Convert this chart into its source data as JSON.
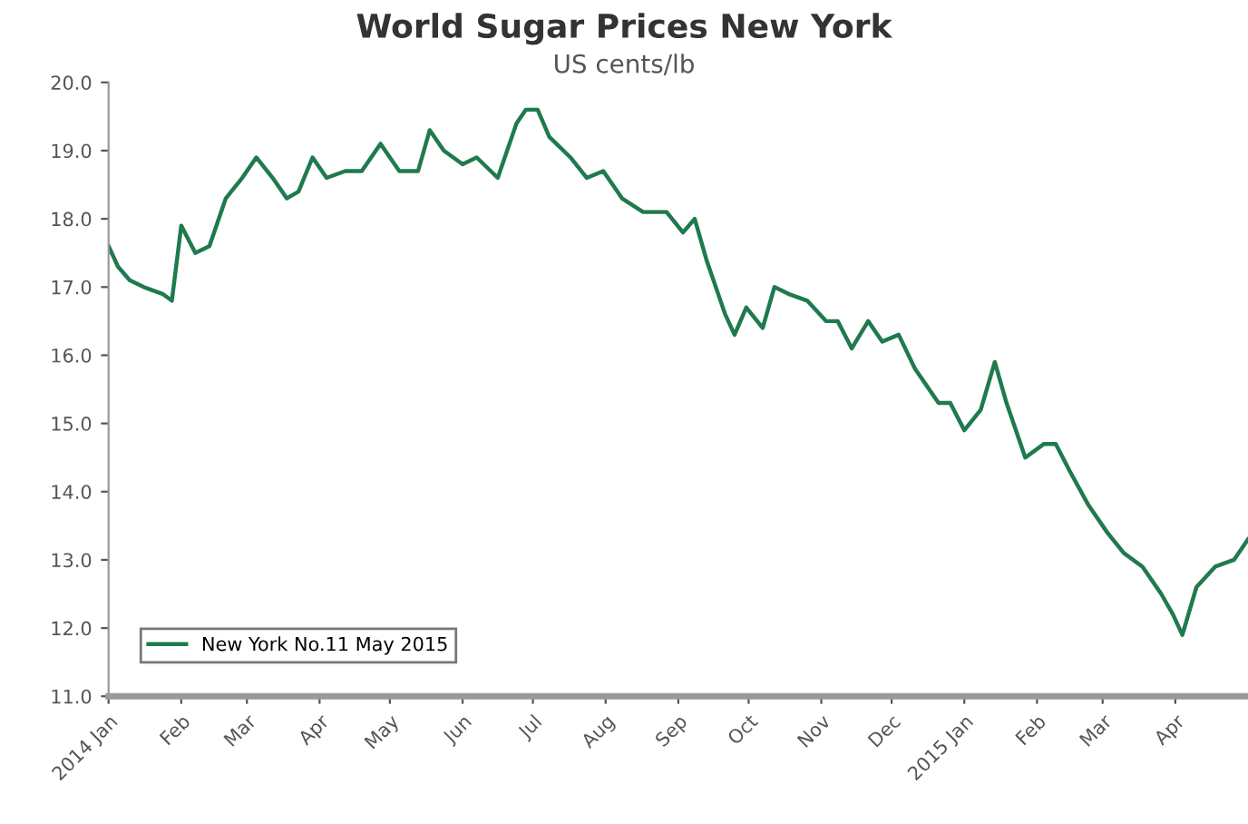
{
  "chart_data": {
    "type": "line",
    "title": "World Sugar Prices New York",
    "subtitle": "US cents/lb",
    "x": [
      "2014-01-01",
      "2014-01-05",
      "2014-01-10",
      "2014-01-16",
      "2014-01-24",
      "2014-01-28",
      "2014-02-01",
      "2014-02-07",
      "2014-02-13",
      "2014-02-20",
      "2014-02-27",
      "2014-03-05",
      "2014-03-12",
      "2014-03-18",
      "2014-03-23",
      "2014-03-29",
      "2014-04-04",
      "2014-04-12",
      "2014-04-19",
      "2014-04-27",
      "2014-05-05",
      "2014-05-13",
      "2014-05-18",
      "2014-05-24",
      "2014-06-01",
      "2014-06-07",
      "2014-06-16",
      "2014-06-24",
      "2014-06-28",
      "2014-07-03",
      "2014-07-08",
      "2014-07-17",
      "2014-07-24",
      "2014-07-31",
      "2014-08-08",
      "2014-08-17",
      "2014-08-27",
      "2014-09-03",
      "2014-09-08",
      "2014-09-13",
      "2014-09-21",
      "2014-09-25",
      "2014-09-30",
      "2014-10-07",
      "2014-10-12",
      "2014-10-18",
      "2014-10-26",
      "2014-11-03",
      "2014-11-08",
      "2014-11-14",
      "2014-11-21",
      "2014-11-27",
      "2014-12-04",
      "2014-12-11",
      "2014-12-21",
      "2014-12-26",
      "2015-01-01",
      "2015-01-08",
      "2015-01-14",
      "2015-01-19",
      "2015-01-27",
      "2015-02-04",
      "2015-02-09",
      "2015-02-15",
      "2015-02-23",
      "2015-03-03",
      "2015-03-10",
      "2015-03-18",
      "2015-03-26",
      "2015-03-31",
      "2015-04-04",
      "2015-04-10",
      "2015-04-18",
      "2015-04-26",
      "2015-05-02"
    ],
    "series": [
      {
        "name": "New York No.11 May 2015",
        "color": "#1f7a4d",
        "values": [
          17.6,
          17.3,
          17.1,
          17.0,
          16.9,
          16.8,
          17.9,
          17.5,
          17.6,
          18.3,
          18.6,
          18.9,
          18.6,
          18.3,
          18.4,
          18.9,
          18.6,
          18.7,
          18.7,
          19.1,
          18.7,
          18.7,
          19.3,
          19.0,
          18.8,
          18.9,
          18.6,
          19.4,
          19.6,
          19.6,
          19.2,
          18.9,
          18.6,
          18.7,
          18.3,
          18.1,
          18.1,
          17.8,
          18.0,
          17.4,
          16.6,
          16.3,
          16.7,
          16.4,
          17.0,
          16.9,
          16.8,
          16.5,
          16.5,
          16.1,
          16.5,
          16.2,
          16.3,
          15.8,
          15.3,
          15.3,
          14.9,
          15.2,
          15.9,
          15.3,
          14.5,
          14.7,
          14.7,
          14.3,
          13.8,
          13.4,
          13.1,
          12.9,
          12.5,
          12.2,
          11.9,
          12.6,
          12.9,
          13.0,
          13.3
        ]
      }
    ],
    "xlim": [
      "2014-01-01",
      "2015-05-02"
    ],
    "ylim": [
      11.0,
      20.0
    ],
    "yticks": [
      {
        "value": 11,
        "label": "11.0"
      },
      {
        "value": 12,
        "label": "12.0"
      },
      {
        "value": 13,
        "label": "13.0"
      },
      {
        "value": 14,
        "label": "14.0"
      },
      {
        "value": 15,
        "label": "15.0"
      },
      {
        "value": 16,
        "label": "16.0"
      },
      {
        "value": 17,
        "label": "17.0"
      },
      {
        "value": 18,
        "label": "18.0"
      },
      {
        "value": 19,
        "label": "19.0"
      },
      {
        "value": 20,
        "label": "20.0"
      }
    ],
    "xticks": [
      {
        "value": "2014-01-01",
        "label": "2014 Jan"
      },
      {
        "value": "2014-02-01",
        "label": "Feb"
      },
      {
        "value": "2014-03-01",
        "label": "Mar"
      },
      {
        "value": "2014-04-01",
        "label": "Apr"
      },
      {
        "value": "2014-05-01",
        "label": "May"
      },
      {
        "value": "2014-06-01",
        "label": "Jun"
      },
      {
        "value": "2014-07-01",
        "label": "Jul"
      },
      {
        "value": "2014-08-01",
        "label": "Aug"
      },
      {
        "value": "2014-09-01",
        "label": "Sep"
      },
      {
        "value": "2014-10-01",
        "label": "Oct"
      },
      {
        "value": "2014-11-01",
        "label": "Nov"
      },
      {
        "value": "2014-12-01",
        "label": "Dec"
      },
      {
        "value": "2015-01-01",
        "label": "2015 Jan"
      },
      {
        "value": "2015-02-01",
        "label": "Feb"
      },
      {
        "value": "2015-03-01",
        "label": "Mar"
      },
      {
        "value": "2015-04-01",
        "label": "Apr"
      }
    ],
    "grid": false,
    "legend": "bottom left",
    "marker": "none",
    "line_style": "solid"
  }
}
